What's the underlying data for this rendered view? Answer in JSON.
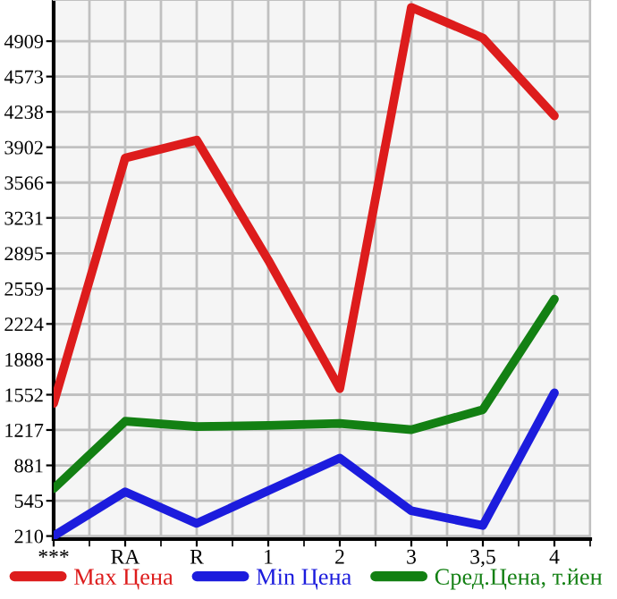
{
  "chart_data": {
    "type": "line",
    "categories": [
      "***",
      "RA",
      "R",
      "1",
      "2",
      "3",
      "3,5",
      "4"
    ],
    "series": [
      {
        "name": "Max Цена",
        "color": "#dd1c1c",
        "values": [
          1470,
          3800,
          3970,
          2830,
          1610,
          5230,
          4940,
          4200
        ]
      },
      {
        "name": "Min Цена",
        "color": "#1c1cdd",
        "values": [
          210,
          630,
          330,
          640,
          950,
          450,
          310,
          1570
        ]
      },
      {
        "name": "Сред.Цена, т.йен",
        "color": "#138013",
        "values": [
          660,
          1300,
          1250,
          1260,
          1280,
          1220,
          1410,
          2460
        ]
      }
    ],
    "ylim": [
      181,
      5300
    ],
    "yticks": [
      210,
      545,
      881,
      1217,
      1552,
      1888,
      2224,
      2559,
      2895,
      3231,
      3566,
      3902,
      4238,
      4573,
      4909
    ],
    "grid": true,
    "legend": "bottom",
    "marker": "none",
    "line_style": "solid"
  }
}
